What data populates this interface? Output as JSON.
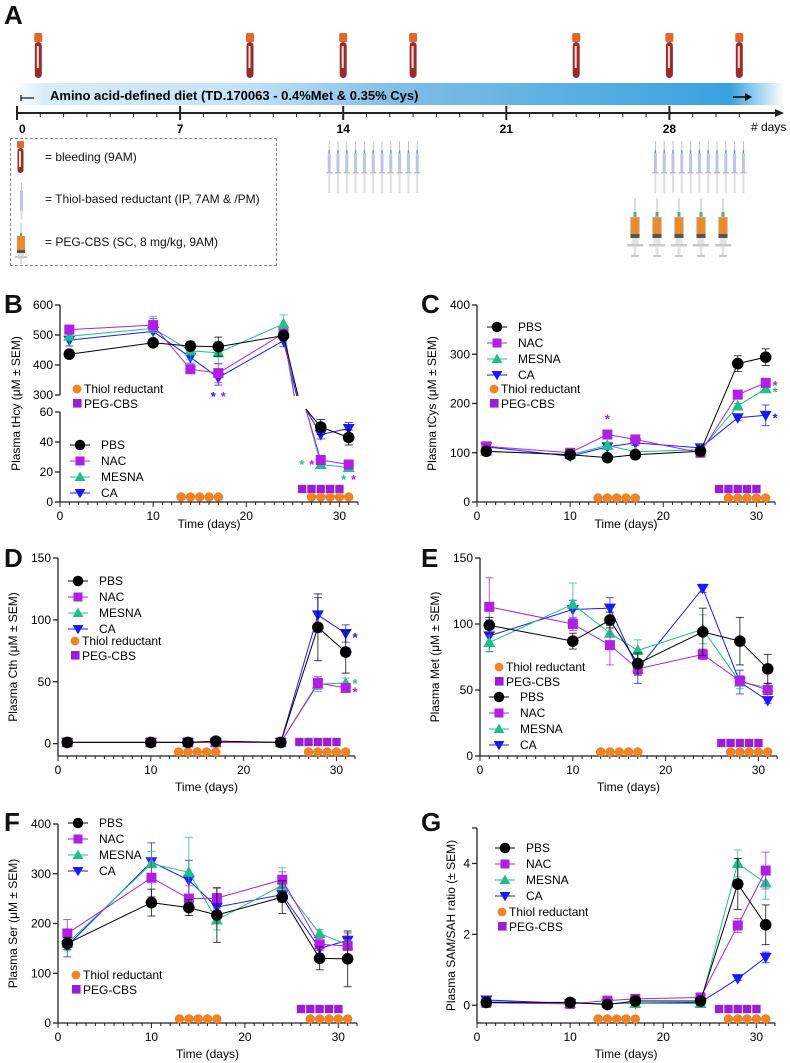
{
  "panelA": {
    "letter": "A",
    "diet_label": "Amino acid-defined diet (TD.170063 - 0.4%Met & 0.35% Cys)",
    "axis_unit": "# days",
    "day_ticks": [
      "0",
      "7",
      "14",
      "21",
      "28"
    ],
    "day_tick_values": [
      0,
      7,
      14,
      21,
      28
    ],
    "bleeding_days": [
      1,
      10,
      14,
      17,
      24,
      28,
      31
    ],
    "thiol_injection_days": [
      14,
      28
    ],
    "thiol_syringes_per_block": 11,
    "pegcbs_syringe_count": 5,
    "legend": [
      {
        "icon": "blood-tube-icon",
        "label": "= bleeding (9AM)"
      },
      {
        "icon": "thin-syringe-icon",
        "label": "= Thiol-based reductant (IP, 7AM & /PM)"
      },
      {
        "icon": "orange-syringe-icon",
        "label": "= PEG-CBS (SC, 8 mg/kg, 9AM)"
      }
    ],
    "colors": {
      "diet_start": "#dcefff",
      "diet_end": "#3aa4e0",
      "tube_cap": "#e0682a",
      "tube_blood": "#9b2a2a"
    }
  },
  "series_style": {
    "PBS": {
      "color": "#000000",
      "marker": "circle"
    },
    "NAC": {
      "color": "#b31ee6",
      "marker": "square"
    },
    "MESNA": {
      "color": "#1dbf8a",
      "marker": "triangle-up"
    },
    "CA": {
      "color": "#1a1aff",
      "marker": "triangle-down"
    }
  },
  "treatment_markers": {
    "thiol_label": "Thiol reductant",
    "thiol_color": "#f58220",
    "thiol_days_1": [
      13,
      14,
      15,
      16,
      17
    ],
    "thiol_days_2": [
      27,
      28,
      29,
      30,
      31
    ],
    "pegcbs_label": "PEG-CBS",
    "pegcbs_color": "#9b1ed6",
    "pegcbs_days": [
      26,
      27,
      28,
      29,
      30
    ]
  },
  "chart_data": [
    {
      "id": "B",
      "letter": "B",
      "type": "line",
      "ylabel": "Plasma tHcy (μM ± SEM)",
      "xlabel": "Time (days)",
      "broken_axis": true,
      "upper_ylim": [
        300,
        600
      ],
      "upper_yticks": [
        300,
        400,
        500,
        600
      ],
      "lower_ylim": [
        0,
        60
      ],
      "lower_yticks": [
        0,
        20,
        40,
        60
      ],
      "xlim": [
        0,
        32
      ],
      "xticks": [
        0,
        10,
        20,
        30
      ],
      "x": [
        1,
        10,
        14,
        17,
        24,
        28,
        31
      ],
      "series": [
        {
          "name": "PBS",
          "values": [
            436,
            474,
            463,
            461,
            498,
            50,
            43
          ],
          "sem": [
            14,
            10,
            14,
            32,
            10,
            5,
            5
          ]
        },
        {
          "name": "NAC",
          "values": [
            518,
            533,
            386,
            373,
            505,
            28,
            25
          ],
          "sem": [
            15,
            22,
            8,
            32,
            15,
            2,
            2
          ]
        },
        {
          "name": "MESNA",
          "values": [
            496,
            522,
            447,
            441,
            537,
            25,
            23
          ],
          "sem": [
            32,
            40,
            30,
            38,
            30,
            2,
            2
          ]
        },
        {
          "name": "CA",
          "values": [
            483,
            512,
            426,
            358,
            481,
            45,
            49
          ],
          "sem": [
            20,
            30,
            20,
            25,
            20,
            3,
            4
          ]
        }
      ],
      "annotations": [
        {
          "x": 17,
          "y_region": "upper-bottom",
          "stars": [
            {
              "text": "*",
              "color": "#1a1aff"
            },
            {
              "text": "*",
              "color": "#b31ee6"
            }
          ]
        },
        {
          "x": 26.5,
          "y": 26,
          "stars": [
            {
              "text": "*",
              "color": "#1dbf8a"
            },
            {
              "text": "*",
              "color": "#b31ee6"
            }
          ]
        },
        {
          "x": 31,
          "y": 16,
          "stars": [
            {
              "text": "*",
              "color": "#1dbf8a"
            },
            {
              "text": "*",
              "color": "#b31ee6"
            }
          ]
        }
      ],
      "legend": [
        "PBS",
        "NAC",
        "MESNA",
        "CA"
      ],
      "legend_position": "lower-left",
      "treatment_legend_position": "upper-left-below-break"
    },
    {
      "id": "C",
      "letter": "C",
      "type": "line",
      "ylabel": "Plasma tCys (μM ± SEM)",
      "xlabel": "Time (days)",
      "ylim": [
        0,
        400
      ],
      "yticks": [
        0,
        100,
        200,
        300,
        400
      ],
      "xlim": [
        0,
        32
      ],
      "xticks": [
        0,
        10,
        20,
        30
      ],
      "x": [
        1,
        10,
        14,
        17,
        24,
        28,
        31
      ],
      "series": [
        {
          "name": "PBS",
          "values": [
            103,
            96,
            90,
            96,
            103,
            281,
            294
          ],
          "sem": [
            4,
            4,
            3,
            4,
            4,
            16,
            17
          ]
        },
        {
          "name": "NAC",
          "values": [
            113,
            100,
            137,
            127,
            100,
            218,
            242
          ],
          "sem": [
            4,
            4,
            6,
            5,
            4,
            6,
            6
          ]
        },
        {
          "name": "MESNA",
          "values": [
            103,
            96,
            115,
            102,
            106,
            195,
            230
          ],
          "sem": [
            4,
            4,
            6,
            4,
            4,
            5,
            5
          ]
        },
        {
          "name": "CA",
          "values": [
            112,
            93,
            112,
            120,
            110,
            171,
            176
          ],
          "sem": [
            4,
            4,
            5,
            5,
            4,
            5,
            21
          ]
        }
      ],
      "annotations": [
        {
          "x": 14,
          "y": 172,
          "stars": [
            {
              "text": "*",
              "color": "#b31ee6"
            }
          ]
        },
        {
          "x": 32,
          "y": 240,
          "stars": [
            {
              "text": "*",
              "color": "#b31ee6"
            }
          ]
        },
        {
          "x": 32,
          "y": 226,
          "stars": [
            {
              "text": "*",
              "color": "#1dbf8a"
            }
          ]
        },
        {
          "x": 32,
          "y": 174,
          "stars": [
            {
              "text": "*",
              "color": "#1a1aff"
            }
          ]
        }
      ],
      "legend": [
        "PBS",
        "NAC",
        "MESNA",
        "CA"
      ],
      "legend_position": "upper-left"
    },
    {
      "id": "D",
      "letter": "D",
      "type": "line",
      "ylabel": "Plasma Cth (μM ± SEM)",
      "xlabel": "Time (days)",
      "ylim": [
        -10,
        150
      ],
      "yticks": [
        0,
        50,
        100,
        150
      ],
      "xlim": [
        0,
        32
      ],
      "xticks": [
        0,
        10,
        20,
        30
      ],
      "x": [
        1,
        10,
        14,
        17,
        24,
        28,
        31
      ],
      "series": [
        {
          "name": "PBS",
          "values": [
            1,
            1,
            1,
            2,
            1,
            94,
            74
          ],
          "sem": [
            0.5,
            0.5,
            0.5,
            0.5,
            0.5,
            27,
            17
          ]
        },
        {
          "name": "NAC",
          "values": [
            1,
            1,
            1,
            1,
            1,
            49,
            45
          ],
          "sem": [
            0.5,
            0.5,
            0.5,
            0.5,
            0.5,
            5,
            3
          ]
        },
        {
          "name": "MESNA",
          "values": [
            1,
            1,
            1,
            1,
            1,
            48,
            49
          ],
          "sem": [
            0.5,
            0.5,
            0.5,
            0.5,
            0.5,
            6,
            4
          ]
        },
        {
          "name": "CA",
          "values": [
            1,
            1,
            1,
            1,
            1,
            104,
            89
          ],
          "sem": [
            0.5,
            0.5,
            0.5,
            0.5,
            0.5,
            14,
            7
          ]
        }
      ],
      "annotations": [
        {
          "x": 32,
          "y": 87,
          "stars": [
            {
              "text": "*",
              "color": "#1a1aff"
            }
          ]
        },
        {
          "x": 32,
          "y": 50,
          "stars": [
            {
              "text": "*",
              "color": "#1dbf8a"
            }
          ]
        },
        {
          "x": 32,
          "y": 43,
          "stars": [
            {
              "text": "*",
              "color": "#b31ee6"
            }
          ]
        }
      ],
      "legend": [
        "PBS",
        "NAC",
        "MESNA",
        "CA"
      ],
      "legend_position": "upper-left"
    },
    {
      "id": "E",
      "letter": "E",
      "type": "line",
      "ylabel": "Plasma Met (μM ± SEM)",
      "xlabel": "Time (days)",
      "ylim": [
        0,
        150
      ],
      "yticks": [
        0,
        50,
        100,
        150
      ],
      "xlim": [
        0,
        32
      ],
      "xticks": [
        0,
        10,
        20,
        30
      ],
      "x": [
        1,
        10,
        14,
        17,
        24,
        28,
        31
      ],
      "series": [
        {
          "name": "PBS",
          "values": [
            99,
            87,
            103,
            70,
            94,
            87,
            66
          ],
          "sem": [
            6,
            6,
            6,
            8,
            18,
            18,
            11
          ]
        },
        {
          "name": "NAC",
          "values": [
            113,
            100,
            84,
            66,
            77,
            57,
            50
          ],
          "sem": [
            22,
            5,
            15,
            5,
            4,
            3,
            5
          ]
        },
        {
          "name": "MESNA",
          "values": [
            86,
            115,
            93,
            80,
            96,
            56,
            52
          ],
          "sem": [
            7,
            16,
            6,
            8,
            11,
            5,
            3
          ]
        },
        {
          "name": "CA",
          "values": [
            91,
            111,
            112,
            66,
            127,
            56,
            42
          ],
          "sem": [
            12,
            7,
            8,
            11,
            3,
            9,
            2
          ]
        }
      ],
      "annotations": [],
      "legend": [
        "PBS",
        "NAC",
        "MESNA",
        "CA"
      ],
      "legend_position": "lower-left"
    },
    {
      "id": "F",
      "letter": "F",
      "type": "line",
      "ylabel": "Plasma Ser (μM ± SEM)",
      "xlabel": "Time (days)",
      "ylim": [
        0,
        400
      ],
      "yticks": [
        0,
        100,
        200,
        300,
        400
      ],
      "xlim": [
        0,
        32
      ],
      "xticks": [
        0,
        10,
        20,
        30
      ],
      "x": [
        1,
        10,
        14,
        17,
        24,
        28,
        31
      ],
      "series": [
        {
          "name": "PBS",
          "values": [
            160,
            242,
            232,
            217,
            253,
            130,
            129
          ],
          "sem": [
            12,
            27,
            16,
            55,
            33,
            23,
            56
          ]
        },
        {
          "name": "NAC",
          "values": [
            180,
            292,
            250,
            251,
            288,
            158,
            155
          ],
          "sem": [
            28,
            38,
            26,
            20,
            16,
            12,
            20
          ]
        },
        {
          "name": "MESNA",
          "values": [
            160,
            320,
            303,
            207,
            277,
            180,
            157
          ],
          "sem": [
            15,
            25,
            70,
            20,
            35,
            8,
            10
          ]
        },
        {
          "name": "CA",
          "values": [
            155,
            324,
            287,
            233,
            258,
            150,
            166
          ],
          "sem": [
            22,
            38,
            40,
            20,
            15,
            10,
            15
          ]
        }
      ],
      "annotations": [],
      "legend": [
        "PBS",
        "NAC",
        "MESNA",
        "CA"
      ],
      "legend_position": "upper-left"
    },
    {
      "id": "G",
      "letter": "G",
      "type": "line",
      "ylabel": "Plasma SAM/SAH ratio (± SEM)",
      "xlabel": "Time (days)",
      "ylim": [
        -0.5,
        5
      ],
      "yticks": [
        0,
        2,
        4
      ],
      "xlim": [
        0,
        32
      ],
      "xticks": [
        0,
        10,
        20,
        30
      ],
      "x": [
        1,
        10,
        14,
        17,
        24,
        28,
        31
      ],
      "series": [
        {
          "name": "PBS",
          "values": [
            0.08,
            0.08,
            0.02,
            0.12,
            0.12,
            3.42,
            2.27
          ],
          "sem": [
            0.03,
            0.03,
            0.02,
            0.03,
            0.03,
            0.72,
            0.56
          ]
        },
        {
          "name": "NAC",
          "values": [
            0.07,
            0.04,
            0.13,
            0.18,
            0.22,
            2.25,
            3.8
          ],
          "sem": [
            0.03,
            0.02,
            0.03,
            0.03,
            0.03,
            0.2,
            0.52
          ]
        },
        {
          "name": "MESNA",
          "values": [
            0.1,
            0.05,
            0.05,
            0.05,
            0.05,
            4.0,
            3.45
          ],
          "sem": [
            0.03,
            0.02,
            0.02,
            0.02,
            0.02,
            0.38,
            0.46
          ]
        },
        {
          "name": "CA",
          "values": [
            0.15,
            0.05,
            0.05,
            0.06,
            0.08,
            0.75,
            1.35
          ],
          "sem": [
            0.04,
            0.02,
            0.02,
            0.02,
            0.02,
            0.05,
            0.15
          ]
        }
      ],
      "annotations": [],
      "legend": [
        "PBS",
        "NAC",
        "MESNA",
        "CA"
      ],
      "legend_position": "upper-left"
    }
  ]
}
